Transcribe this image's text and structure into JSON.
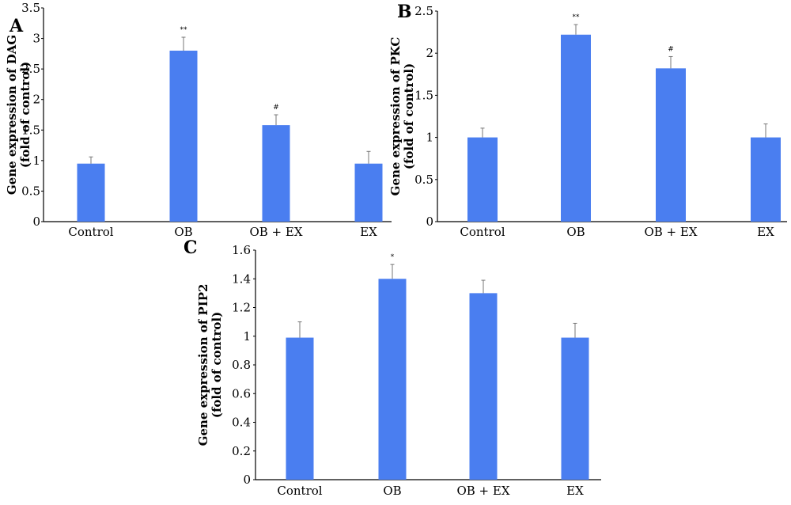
{
  "colors": {
    "bar": "#4a7ef0",
    "axis": "#000000",
    "error_bar": "#777777"
  },
  "chart_data": [
    {
      "type": "bar",
      "panel": "A",
      "ylabel_line1": "Gene expression of DAG",
      "ylabel_line2": "(fold of control)",
      "categories": [
        "Control",
        "OB",
        "OB + EX",
        "EX"
      ],
      "values": [
        0.95,
        2.8,
        1.58,
        0.95
      ],
      "errors": [
        0.11,
        0.22,
        0.17,
        0.2
      ],
      "significance": [
        "",
        "**",
        "#",
        ""
      ],
      "ylim": [
        0,
        3.5
      ],
      "yticks": [
        "0",
        "0.5",
        "1",
        "1.5",
        "2",
        "2.5",
        "3",
        "3.5"
      ]
    },
    {
      "type": "bar",
      "panel": "B",
      "ylabel_line1": "Gene expression of PKC",
      "ylabel_line2": "(fold of control)",
      "categories": [
        "Control",
        "OB",
        "OB + EX",
        "EX"
      ],
      "values": [
        1.0,
        2.22,
        1.82,
        1.0
      ],
      "errors": [
        0.11,
        0.12,
        0.14,
        0.16
      ],
      "significance": [
        "",
        "**",
        "#",
        ""
      ],
      "ylim": [
        0,
        2.5
      ],
      "yticks": [
        "0",
        "0.5",
        "1",
        "1.5",
        "2",
        "2.5"
      ]
    },
    {
      "type": "bar",
      "panel": "C",
      "ylabel_line1": "Gene expression of PIP2",
      "ylabel_line2": "(fold of control)",
      "categories": [
        "Control",
        "OB",
        "OB + EX",
        "EX"
      ],
      "values": [
        0.99,
        1.4,
        1.3,
        0.99
      ],
      "errors": [
        0.11,
        0.1,
        0.09,
        0.1
      ],
      "significance": [
        "",
        "*",
        "",
        ""
      ],
      "ylim": [
        0,
        1.6
      ],
      "yticks": [
        "0",
        "0.2",
        "0.4",
        "0.6",
        "0.8",
        "1",
        "1.2",
        "1.4",
        "1.6"
      ]
    }
  ]
}
